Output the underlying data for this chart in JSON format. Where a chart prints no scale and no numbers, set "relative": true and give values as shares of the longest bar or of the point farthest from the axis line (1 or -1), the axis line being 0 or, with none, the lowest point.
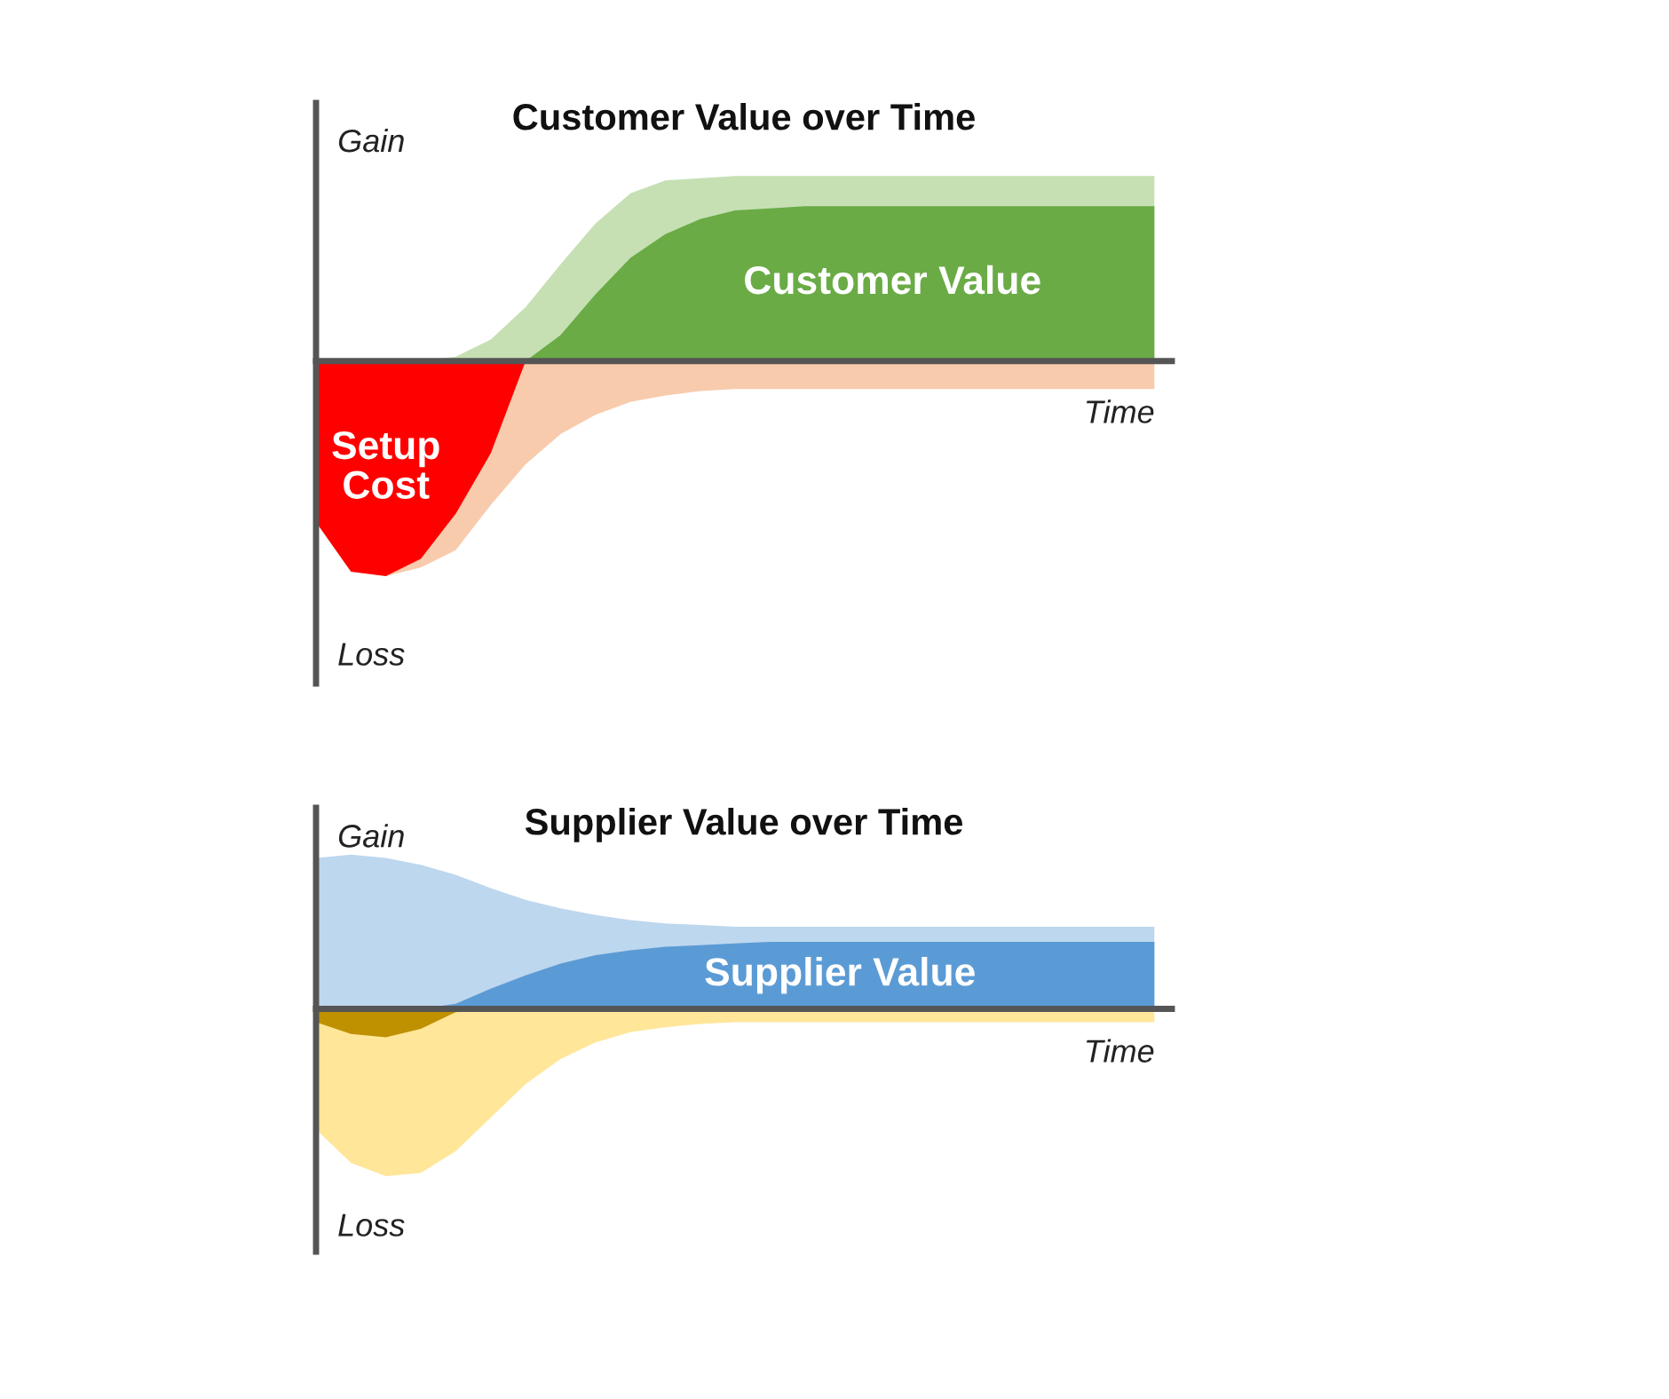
{
  "chart_data": [
    {
      "type": "area",
      "title": "Customer Value over Time",
      "xlabel": "Time",
      "annotations": [
        "Gain",
        "Loss"
      ],
      "relative": true,
      "legend": false,
      "tick_labels": false,
      "categories": [
        null,
        null,
        null,
        null,
        null,
        null,
        null,
        null,
        null,
        null,
        null,
        null,
        null,
        null,
        null,
        null,
        null,
        null,
        null,
        null,
        null,
        null,
        null,
        null,
        null
      ],
      "series": [
        {
          "color": "#c6e0b4",
          "values": [
            0,
            0,
            0,
            0,
            0.02,
            0.1,
            0.25,
            0.45,
            0.64,
            0.78,
            0.84,
            0.85,
            0.86,
            0.86,
            0.86,
            0.86,
            0.86,
            0.86,
            0.86,
            0.86,
            0.86,
            0.86,
            0.86,
            0.86,
            0.86
          ]
        },
        {
          "color": "#f8cbad",
          "values": [
            -0.75,
            -0.98,
            -1.0,
            -0.96,
            -0.88,
            -0.67,
            -0.48,
            -0.34,
            -0.25,
            -0.19,
            -0.16,
            -0.14,
            -0.13,
            -0.13,
            -0.13,
            -0.13,
            -0.13,
            -0.13,
            -0.13,
            -0.13,
            -0.13,
            -0.13,
            -0.13,
            -0.13,
            -0.13
          ]
        },
        {
          "name": "Customer Value",
          "color": "#6aab46",
          "values": [
            0,
            0,
            0,
            0,
            0,
            0,
            0,
            0.12,
            0.31,
            0.48,
            0.59,
            0.66,
            0.7,
            0.71,
            0.72,
            0.72,
            0.72,
            0.72,
            0.72,
            0.72,
            0.72,
            0.72,
            0.72,
            0.72,
            0.72
          ]
        },
        {
          "name": "Setup\nCost",
          "color": "#ff0000",
          "values": [
            -0.75,
            -0.98,
            -1.0,
            -0.92,
            -0.71,
            -0.43,
            0,
            null,
            null,
            null,
            null,
            null,
            null,
            null,
            null,
            null,
            null,
            null,
            null,
            null,
            null,
            null,
            null,
            null,
            null
          ]
        }
      ]
    },
    {
      "type": "area",
      "title": "Supplier Value over Time",
      "xlabel": "Time",
      "annotations": [
        "Gain",
        "Loss"
      ],
      "relative": true,
      "legend": false,
      "tick_labels": false,
      "categories": [
        null,
        null,
        null,
        null,
        null,
        null,
        null,
        null,
        null,
        null,
        null,
        null,
        null,
        null,
        null,
        null,
        null,
        null,
        null,
        null,
        null,
        null,
        null,
        null,
        null
      ],
      "series": [
        {
          "color": "#bdd7ee",
          "values": [
            0.9,
            0.92,
            0.9,
            0.86,
            0.8,
            0.72,
            0.65,
            0.6,
            0.56,
            0.53,
            0.51,
            0.5,
            0.49,
            0.49,
            0.49,
            0.49,
            0.49,
            0.49,
            0.49,
            0.49,
            0.49,
            0.49,
            0.49,
            0.49,
            0.49
          ]
        },
        {
          "color": "#ffe699",
          "values": [
            -0.72,
            -0.92,
            -1.0,
            -0.98,
            -0.85,
            -0.65,
            -0.45,
            -0.3,
            -0.2,
            -0.14,
            -0.11,
            -0.09,
            -0.08,
            -0.08,
            -0.08,
            -0.08,
            -0.08,
            -0.08,
            -0.08,
            -0.08,
            -0.08,
            -0.08,
            -0.08,
            -0.08,
            -0.08
          ]
        },
        {
          "name": "Supplier Value",
          "color": "#5b9bd5",
          "values": [
            0,
            0,
            0,
            0,
            0.03,
            0.12,
            0.2,
            0.27,
            0.32,
            0.35,
            0.37,
            0.38,
            0.39,
            0.4,
            0.4,
            0.4,
            0.4,
            0.4,
            0.4,
            0.4,
            0.4,
            0.4,
            0.4,
            0.4,
            0.4
          ]
        },
        {
          "color": "#bf9000",
          "values": [
            -0.08,
            -0.15,
            -0.17,
            -0.12,
            -0.02,
            0,
            null,
            null,
            null,
            null,
            null,
            null,
            null,
            null,
            null,
            null,
            null,
            null,
            null,
            null,
            null,
            null,
            null,
            null,
            null
          ]
        }
      ]
    }
  ]
}
